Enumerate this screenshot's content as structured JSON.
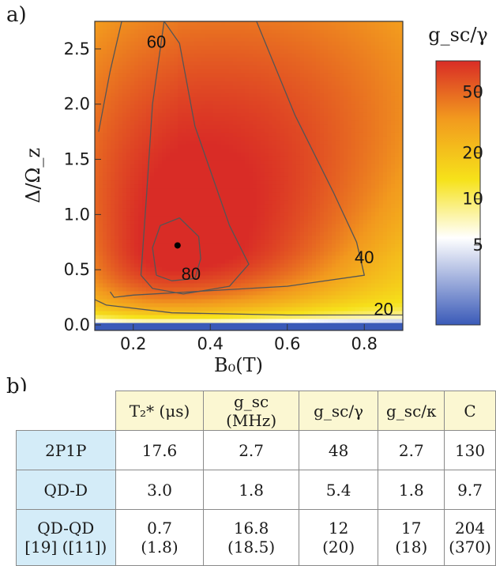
{
  "panels": {
    "a": "a)",
    "b": "b)"
  },
  "chart_data": {
    "type": "heatmap",
    "xlabel": "B₀(T)",
    "ylabel": "Δ/Ω_z",
    "colorbar_label": "g_sc/γ",
    "x_range": [
      0.1,
      0.9
    ],
    "y_range": [
      -0.05,
      2.75
    ],
    "x_ticks": [
      "0.2",
      "0.4",
      "0.6",
      "0.8"
    ],
    "y_ticks": [
      "0.0",
      "0.5",
      "1.0",
      "1.5",
      "2.0",
      "2.5"
    ],
    "colorbar_ticks": [
      "50",
      "20",
      "10",
      "5"
    ],
    "colorbar_scale": "log",
    "colormap": [
      "#3a5ab8",
      "#ffffff",
      "#f6e21a",
      "#f29a1e",
      "#d92c26"
    ],
    "contour_labels": [
      {
        "value": "60",
        "x": 0.26,
        "y": 2.55
      },
      {
        "value": "80",
        "x": 0.35,
        "y": 0.45
      },
      {
        "value": "40",
        "x": 0.8,
        "y": 0.6
      },
      {
        "value": "20",
        "x": 0.85,
        "y": 0.13
      }
    ],
    "optimum_point": {
      "x": 0.315,
      "y": 0.72
    },
    "z_max": 80
  },
  "table": {
    "headers": [
      "T₂* (μs)",
      "g_sc (MHz)",
      "g_sc/γ",
      "g_sc/κ",
      "C"
    ],
    "rows": [
      {
        "label": "2P1P",
        "values": [
          "17.6",
          "2.7",
          "48",
          "2.7",
          "130"
        ]
      },
      {
        "label": "QD-D",
        "values": [
          "3.0",
          "1.8",
          "5.4",
          "1.8",
          "9.7"
        ]
      },
      {
        "label": "QD-QD",
        "sublabel": "[19] ([11])",
        "values": [
          "0.7",
          "16.8",
          "12",
          "17",
          "204"
        ],
        "subvalues": [
          "(1.8)",
          "(18.5)",
          "(20)",
          "(18)",
          "(370)"
        ]
      }
    ]
  }
}
